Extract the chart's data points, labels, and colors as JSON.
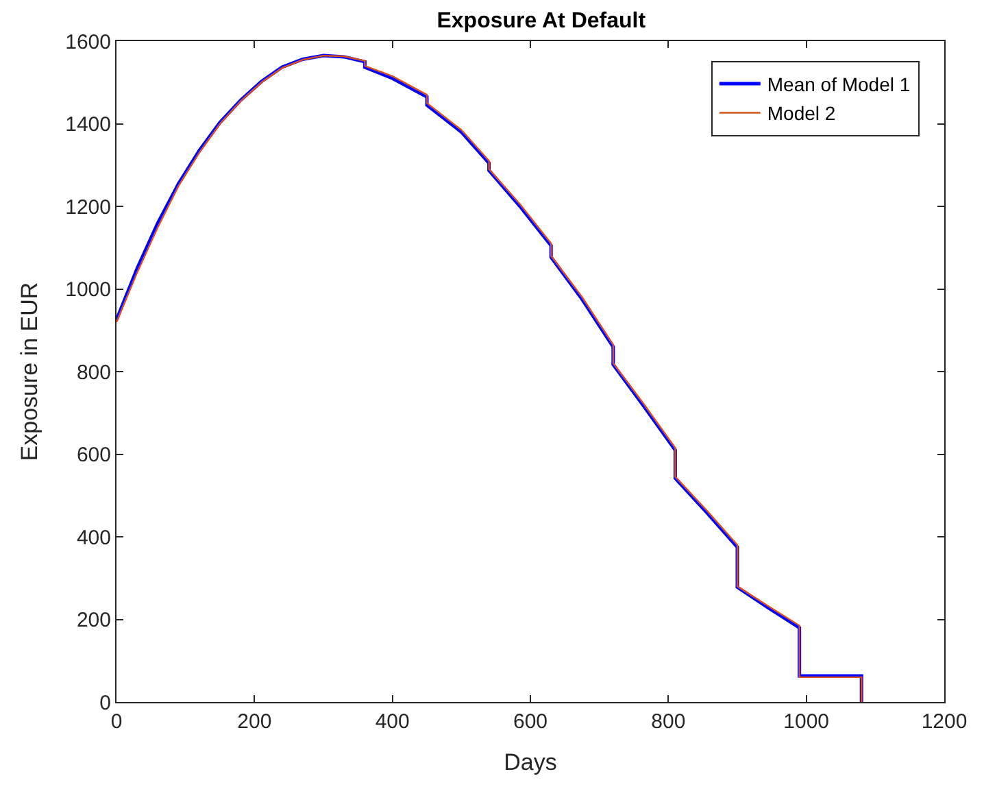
{
  "chart_data": {
    "type": "line",
    "title": "Exposure At Default",
    "xlabel": "Days",
    "ylabel": "Exposure in EUR",
    "xlim": [
      0,
      1200
    ],
    "xticks": [
      0,
      200,
      400,
      600,
      800,
      1000,
      1200
    ],
    "ylim": [
      0,
      1600
    ],
    "yticks": [
      0,
      200,
      400,
      600,
      800,
      1000,
      1200,
      1400,
      1600
    ],
    "x": [
      0,
      30,
      60,
      90,
      120,
      150,
      180,
      210,
      240,
      270,
      300,
      330,
      360,
      360,
      400,
      450,
      450,
      500,
      540,
      540,
      585,
      630,
      630,
      675,
      720,
      720,
      765,
      810,
      810,
      855,
      900,
      900,
      945,
      990,
      990,
      1080,
      1080
    ],
    "series": [
      {
        "name": "Mean of Model 1",
        "color": "#0000ff",
        "values": [
          925,
          1050,
          1160,
          1255,
          1335,
          1403,
          1457,
          1502,
          1537,
          1556,
          1565,
          1562,
          1550,
          1537,
          1510,
          1465,
          1445,
          1380,
          1305,
          1287,
          1200,
          1105,
          1077,
          975,
          860,
          817,
          715,
          610,
          542,
          460,
          375,
          278,
          228,
          180,
          63,
          63,
          0
        ]
      },
      {
        "name": "Model 2",
        "color": "#d95319",
        "values": [
          920,
          1040,
          1150,
          1250,
          1330,
          1400,
          1455,
          1500,
          1535,
          1555,
          1565,
          1563,
          1552,
          1540,
          1515,
          1470,
          1450,
          1385,
          1310,
          1290,
          1205,
          1110,
          1080,
          980,
          865,
          820,
          720,
          615,
          545,
          465,
          380,
          280,
          232,
          185,
          60,
          60,
          0
        ]
      }
    ],
    "legend": "top right",
    "marker": "none",
    "line_style": "solid"
  }
}
